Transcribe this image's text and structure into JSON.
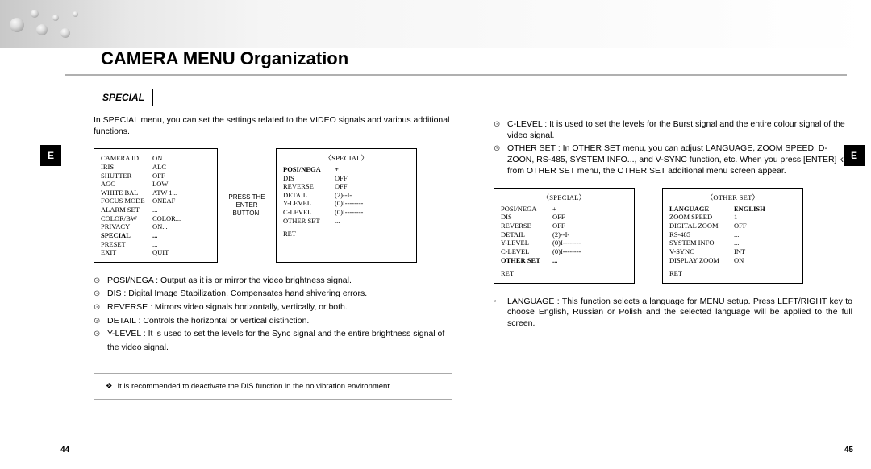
{
  "title": "CAMERA MENU Organization",
  "sidebar_label": "E",
  "section_header": "SPECIAL",
  "left": {
    "intro": "In SPECIAL menu, you can set the settings related to the VIDEO signals and various additional functions.",
    "main_menu": [
      {
        "label": "CAMERA ID",
        "value": "ON..."
      },
      {
        "label": "IRIS",
        "value": "ALC"
      },
      {
        "label": "SHUTTER",
        "value": "OFF"
      },
      {
        "label": "AGC",
        "value": "LOW"
      },
      {
        "label": "WHITE BAL",
        "value": "ATW 1..."
      },
      {
        "label": "FOCUS MODE",
        "value": "ONEAF"
      },
      {
        "label": "ALARM SET",
        "value": "..."
      },
      {
        "label": "COLOR/BW",
        "value": "COLOR..."
      },
      {
        "label": "PRIVACY",
        "value": "ON..."
      },
      {
        "label": "SPECIAL",
        "value": "...",
        "bold": true
      },
      {
        "label": "PRESET",
        "value": "..."
      },
      {
        "label": "EXIT",
        "value": "QUIT"
      }
    ],
    "arrow_note": "PRESS THE ENTER BUTTON.",
    "special_head": "〈SPECIAL〉",
    "special_menu": [
      {
        "label": "POSI/NEGA",
        "value": "+",
        "bold": true
      },
      {
        "label": "DIS",
        "value": "OFF"
      },
      {
        "label": "REVERSE",
        "value": "OFF"
      },
      {
        "label": "DETAIL",
        "value": "(2)--I-"
      },
      {
        "label": "Y-LEVEL",
        "value": "(0)I--------"
      },
      {
        "label": "C-LEVEL",
        "value": "(0)I--------"
      },
      {
        "label": "OTHER SET",
        "value": "..."
      }
    ],
    "special_ret": "RET",
    "bullets": [
      "POSI/NEGA : Output as it is or mirror the video brightness signal.",
      "DIS : Digital Image Stabilization. Compensates hand shivering errors.",
      "REVERSE : Mirrors video signals horizontally, vertically, or both.",
      "DETAIL : Controls the horizontal or vertical distinction.",
      "Y-LEVEL : It is used to set the levels for the Sync signal and the entire brightness signal of"
    ],
    "bullet5_cont": "the video signal.",
    "note": "It is recommended to deactivate the DIS function in the no vibration environment.",
    "page_num": "44"
  },
  "right": {
    "bullets_top": [
      "C-LEVEL : It is used to set the levels for the Burst signal and the entire colour signal of the video signal.",
      "OTHER SET  : In OTHER SET menu, you can adjust LANGUAGE,  ZOOM SPEED, D-ZOON, RS-485, SYSTEM INFO..., and V-SYNC function, etc. When you press [ENTER] key from OTHER SET menu, the OTHER SET additional menu screen appear."
    ],
    "special_head": "〈SPECIAL〉",
    "special_menu": [
      {
        "label": "POSI/NEGA",
        "value": "+"
      },
      {
        "label": "DIS",
        "value": "OFF"
      },
      {
        "label": "REVERSE",
        "value": "OFF"
      },
      {
        "label": "DETAIL",
        "value": "(2)--I-"
      },
      {
        "label": "Y-LEVEL",
        "value": "(0)I--------"
      },
      {
        "label": "C-LEVEL",
        "value": "(0)I--------"
      },
      {
        "label": "OTHER SET",
        "value": "...",
        "bold": true
      }
    ],
    "special_ret": "RET",
    "other_head": "〈OTHER SET〉",
    "other_menu": [
      {
        "label": "LANGUAGE",
        "value": "ENGLISH",
        "bold": true
      },
      {
        "label": "ZOOM SPEED",
        "value": "1"
      },
      {
        "label": "DIGITAL ZOOM",
        "value": "OFF"
      },
      {
        "label": "RS-485",
        "value": "..."
      },
      {
        "label": "SYSTEM INFO",
        "value": "..."
      },
      {
        "label": "V-SYNC",
        "value": "INT"
      },
      {
        "label": "DISPLAY ZOOM",
        "value": "ON"
      }
    ],
    "other_ret": "RET",
    "sub_bullet": "LANGUAGE : This function selects a language for MENU setup. Press LEFT/RIGHT key to choose English, Russian or Polish and the selected language will be applied to the full screen.",
    "page_num": "45"
  },
  "colors": {
    "text": "#000000",
    "bg": "#ffffff",
    "border": "#000000",
    "header_grad_start": "#c8c8c8",
    "bullet": "#444444"
  }
}
